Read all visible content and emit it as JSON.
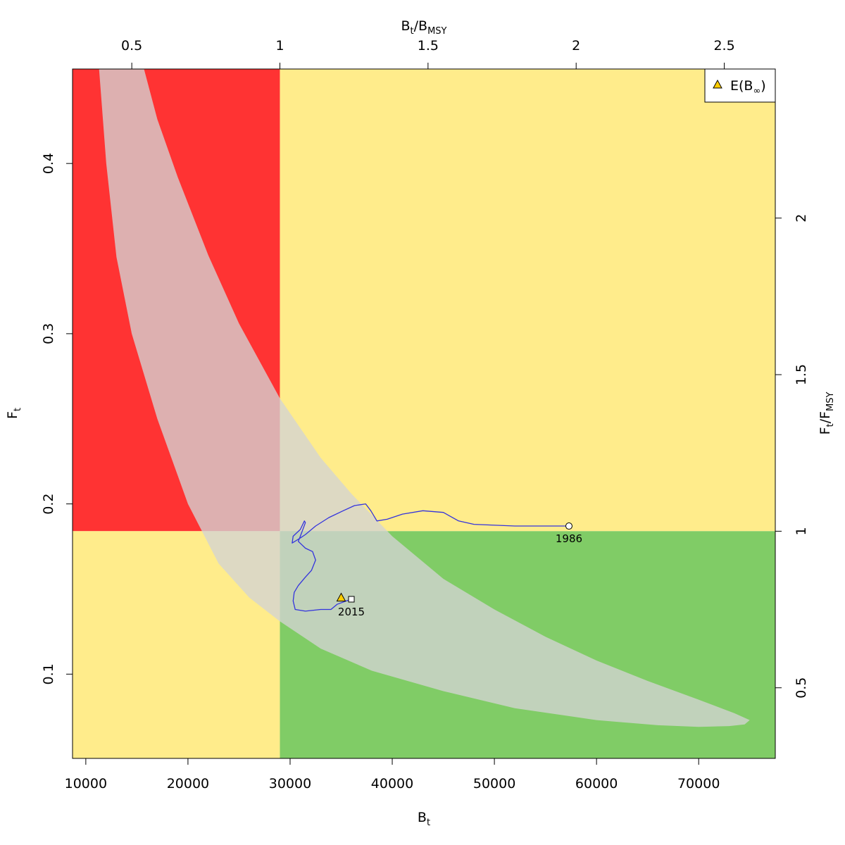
{
  "chart_data": {
    "type": "line",
    "title": "",
    "x_axis_bottom": {
      "label_main": "B",
      "label_sub": "t",
      "range": [
        8700,
        77500
      ],
      "ticks": [
        10000,
        20000,
        30000,
        40000,
        50000,
        60000,
        70000
      ]
    },
    "x_axis_top": {
      "label_main": "B",
      "label_sub": "t",
      "label_main2": "/B",
      "label_sub2": "MSY",
      "ticks": [
        0.5,
        1,
        1.5,
        2,
        2.5
      ],
      "ratio_per_unit": 3.448e-05
    },
    "y_axis_left": {
      "label_main": "F",
      "label_sub": "t",
      "range": [
        0.0505,
        0.4555
      ],
      "ticks": [
        0.1,
        0.2,
        0.3,
        0.4
      ]
    },
    "y_axis_right": {
      "label_main": "F",
      "label_sub": "t",
      "label_main2": "/F",
      "label_sub2": "MSY",
      "ticks": [
        0.5,
        1,
        1.5,
        2
      ],
      "ratio_per_unit": 5.436
    },
    "reference_points": {
      "bmsy": 29000,
      "fmsy": 0.184
    },
    "zone_colors": {
      "overfished_overfishing": "#ff3333",
      "caution": "#ffec8b",
      "healthy": "#80cc66",
      "ellipse": "#d3d3d3"
    },
    "trajectory_color": "#3333dd",
    "confidence_region": {
      "outer_edge": [
        [
          11300,
          0.4555
        ],
        [
          12000,
          0.4
        ],
        [
          13000,
          0.345
        ],
        [
          14500,
          0.3
        ],
        [
          17000,
          0.25
        ],
        [
          20000,
          0.2
        ],
        [
          23000,
          0.165
        ],
        [
          26000,
          0.145
        ],
        [
          29000,
          0.131
        ],
        [
          33000,
          0.115
        ],
        [
          38000,
          0.102
        ],
        [
          45000,
          0.09
        ],
        [
          52000,
          0.08
        ],
        [
          60000,
          0.073
        ],
        [
          66000,
          0.07
        ],
        [
          70000,
          0.069
        ],
        [
          73000,
          0.0695
        ],
        [
          74500,
          0.0705
        ]
      ],
      "inner_edge": [
        [
          75000,
          0.073
        ],
        [
          73500,
          0.077
        ],
        [
          70000,
          0.085
        ],
        [
          65000,
          0.096
        ],
        [
          60000,
          0.108
        ],
        [
          55000,
          0.122
        ],
        [
          50000,
          0.138
        ],
        [
          45000,
          0.156
        ],
        [
          40000,
          0.181
        ],
        [
          36000,
          0.206
        ],
        [
          33000,
          0.227
        ],
        [
          29000,
          0.262
        ],
        [
          25000,
          0.306
        ],
        [
          22000,
          0.346
        ],
        [
          19000,
          0.392
        ],
        [
          17000,
          0.426
        ],
        [
          15700,
          0.4555
        ]
      ]
    },
    "series": [
      {
        "points": [
          [
            57300,
            0.187
          ],
          [
            52000,
            0.187
          ],
          [
            48000,
            0.188
          ],
          [
            46500,
            0.19
          ],
          [
            45000,
            0.195
          ],
          [
            43000,
            0.196
          ],
          [
            41000,
            0.194
          ],
          [
            39500,
            0.191
          ],
          [
            38500,
            0.19
          ],
          [
            37900,
            0.196
          ],
          [
            37400,
            0.2
          ],
          [
            36300,
            0.199
          ],
          [
            35200,
            0.196
          ],
          [
            33800,
            0.192
          ],
          [
            32500,
            0.187
          ],
          [
            31500,
            0.182
          ],
          [
            31000,
            0.18
          ],
          [
            30200,
            0.177
          ],
          [
            30300,
            0.181
          ],
          [
            31000,
            0.185
          ],
          [
            31400,
            0.19
          ],
          [
            31500,
            0.189
          ],
          [
            31000,
            0.181
          ],
          [
            30800,
            0.178
          ],
          [
            31500,
            0.174
          ],
          [
            32200,
            0.172
          ],
          [
            32500,
            0.167
          ],
          [
            32100,
            0.161
          ],
          [
            31500,
            0.157
          ],
          [
            30800,
            0.152
          ],
          [
            30400,
            0.148
          ],
          [
            30300,
            0.143
          ],
          [
            30500,
            0.138
          ],
          [
            31500,
            0.137
          ],
          [
            33000,
            0.138
          ],
          [
            34000,
            0.138
          ],
          [
            34600,
            0.141
          ],
          [
            35500,
            0.143
          ],
          [
            36000,
            0.144
          ]
        ]
      }
    ],
    "start_point": {
      "x": 57300,
      "y": 0.187,
      "label": "1986"
    },
    "end_point": {
      "x": 36000,
      "y": 0.144,
      "label": "2015"
    },
    "expected_point": {
      "x": 35000,
      "y": 0.145
    },
    "legend": {
      "position": "top-right",
      "entries": [
        {
          "label_main": "E(B",
          "label_sub": "∞",
          "label_tail": ")",
          "marker": "triangle",
          "color": "#ffcc00"
        }
      ]
    },
    "grid": false
  }
}
